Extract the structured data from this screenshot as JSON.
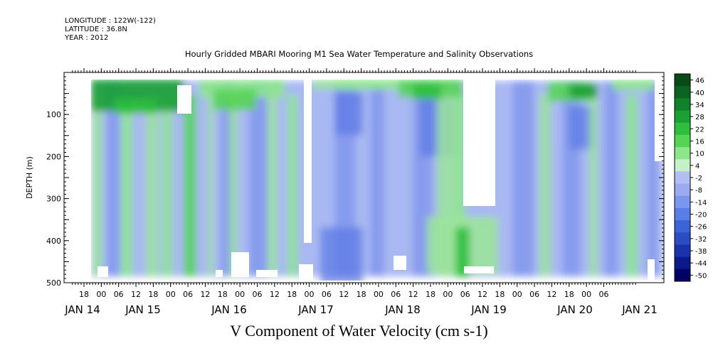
{
  "header": {
    "longitude": "LONGITUDE : 122W(-122)",
    "latitude": "LATITUDE : 36.8N",
    "year": "YEAR : 2012"
  },
  "chart_title": "Hourly Gridded MBARI Mooring M1 Sea Water Temperature and Salinity Observations",
  "variable_title": "V Component of Water Velocity (cm s-1)",
  "chart_data": {
    "type": "heatmap",
    "title": "Hourly Gridded MBARI Mooring M1 Sea Water Temperature and Salinity Observations",
    "subtitle": "V Component of Water Velocity (cm s-1)",
    "ylabel": "DEPTH (m)",
    "xlabel": "",
    "y_ticks": [
      100,
      200,
      300,
      400,
      500
    ],
    "ylim": [
      500,
      0
    ],
    "x_hour_ticks": [
      "18",
      "00",
      "06",
      "12",
      "18",
      "00",
      "06",
      "12",
      "18",
      "00",
      "06",
      "12",
      "18",
      "00",
      "06",
      "12",
      "18",
      "00",
      "06",
      "12",
      "18",
      "00",
      "06",
      "12",
      "18",
      "00",
      "06",
      "12",
      "18",
      "00",
      "06"
    ],
    "x_day_labels": [
      "JAN 14",
      "JAN 15",
      "JAN 16",
      "JAN 17",
      "JAN 18",
      "JAN 19",
      "JAN 20",
      "JAN 21"
    ],
    "colorbar": {
      "levels": [
        -50,
        -44,
        -38,
        -32,
        -26,
        -20,
        -14,
        -8,
        -2,
        4,
        10,
        16,
        22,
        28,
        34,
        40,
        46
      ],
      "colors": [
        "#000066",
        "#0a1a8a",
        "#1a33aa",
        "#2a4dc4",
        "#3d63d8",
        "#5a7de6",
        "#7b96ee",
        "#9aabf0",
        "#b3bff2",
        "#c6f0c6",
        "#8ce68c",
        "#55d455",
        "#2ebf3e",
        "#1aa033",
        "#12822a",
        "#0c6422",
        "#084a18"
      ]
    },
    "grid": false
  }
}
